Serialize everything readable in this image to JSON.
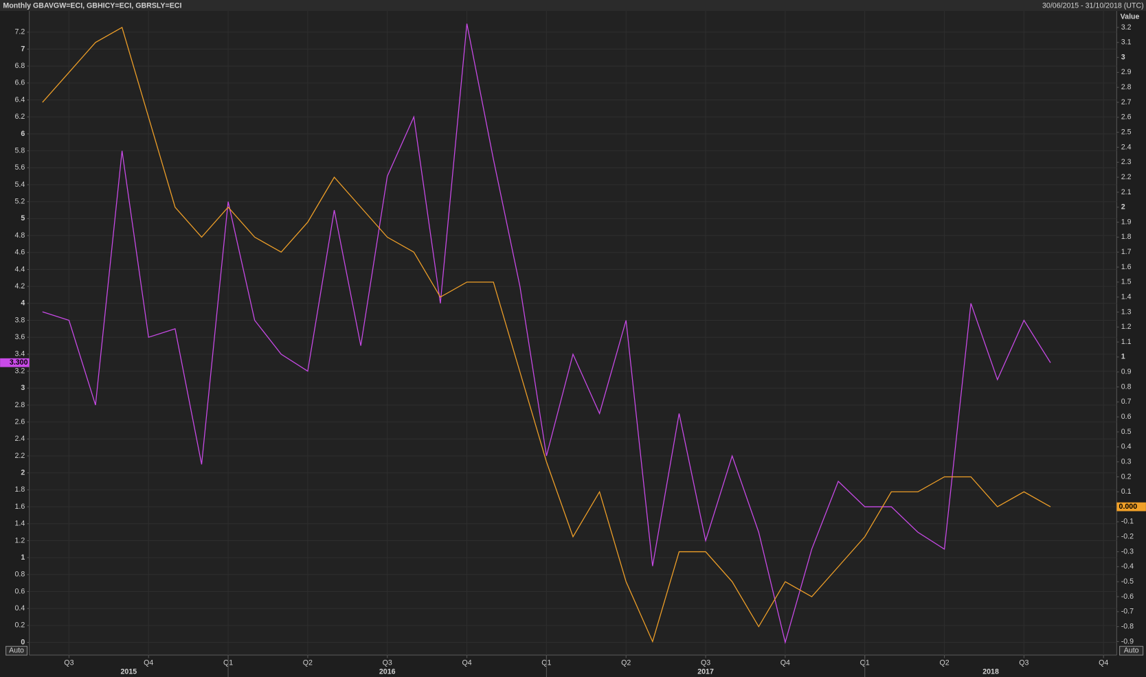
{
  "chart_data": {
    "type": "line",
    "title": "Monthly GBAVGW=ECI, GBHICY=ECI, GBRSLY=ECI",
    "date_range": "30/06/2015 - 31/10/2018 (UTC)",
    "y2_label": "Value",
    "left_scale_mode": "Auto",
    "right_scale_mode": "Auto",
    "categories": [
      null,
      "Q3",
      null,
      null,
      "Q4",
      null,
      null,
      "Q1",
      null,
      null,
      "Q2",
      null,
      null,
      "Q3",
      null,
      null,
      "Q4",
      null,
      null,
      "Q1",
      null,
      null,
      "Q2",
      null,
      null,
      "Q3",
      null,
      null,
      "Q4",
      null,
      null,
      "Q1",
      null,
      null,
      "Q2",
      null,
      null,
      "Q3",
      null,
      null,
      "Q4"
    ],
    "category_groups": [
      "2015",
      "2015",
      "2015",
      "2015",
      "2015",
      "2015",
      "2015",
      "2016",
      "2016",
      "2016",
      "2016",
      "2016",
      "2016",
      "2016",
      "2016",
      "2016",
      "2016",
      "2016",
      "2016",
      "2017",
      "2017",
      "2017",
      "2017",
      "2017",
      "2017",
      "2017",
      "2017",
      "2017",
      "2017",
      "2017",
      "2017",
      "2018",
      "2018",
      "2018",
      "2018",
      "2018",
      "2018",
      "2018",
      "2018",
      "2018",
      "2018"
    ],
    "series": [
      {
        "color": "#c94ae8",
        "axis": "y",
        "last_label": "3.300",
        "values": [
          3.9,
          3.8,
          2.8,
          5.8,
          3.6,
          3.7,
          2.1,
          5.2,
          3.8,
          3.4,
          3.2,
          5.1,
          3.5,
          5.5,
          6.2,
          4.0,
          7.3,
          5.7,
          4.2,
          2.2,
          3.4,
          2.7,
          3.8,
          0.9,
          2.7,
          1.2,
          2.2,
          1.3,
          0.0,
          1.1,
          1.9,
          1.6,
          1.6,
          1.3,
          1.1,
          4.0,
          3.1,
          3.8,
          3.3,
          null,
          null
        ]
      },
      {
        "color": "#f0a028",
        "axis": "y2",
        "last_label": "0.000",
        "values": [
          2.7,
          2.9,
          3.1,
          3.2,
          2.6,
          2.0,
          1.8,
          2.0,
          1.8,
          1.7,
          1.9,
          2.2,
          2.0,
          1.8,
          1.7,
          1.4,
          1.5,
          1.5,
          0.9,
          0.3,
          -0.2,
          0.1,
          -0.5,
          -0.9,
          -0.3,
          -0.3,
          -0.5,
          -0.8,
          -0.5,
          -0.6,
          -0.4,
          -0.2,
          0.1,
          0.1,
          0.2,
          0.2,
          0.0,
          0.1,
          0.0,
          null,
          null
        ]
      }
    ],
    "ylim": [
      -0.15,
      7.45
    ],
    "yticks": [
      0,
      0.2,
      0.4,
      0.6,
      0.8,
      1,
      1.2,
      1.4,
      1.6,
      1.8,
      2,
      2.2,
      2.4,
      2.6,
      2.8,
      3,
      3.2,
      3.4,
      3.6,
      3.8,
      4,
      4.2,
      4.4,
      4.6,
      4.8,
      5,
      5.2,
      5.4,
      5.6,
      5.8,
      6,
      6.2,
      6.4,
      6.6,
      6.8,
      7,
      7.2
    ],
    "y2lim": [
      -0.99,
      3.31
    ],
    "y2ticks": [
      -0.9,
      -0.8,
      -0.7,
      -0.6,
      -0.5,
      -0.4,
      -0.3,
      -0.2,
      -0.1,
      0,
      0.1,
      0.2,
      0.3,
      0.4,
      0.5,
      0.6,
      0.7,
      0.8,
      0.9,
      1,
      1.1,
      1.2,
      1.3,
      1.4,
      1.5,
      1.6,
      1.7,
      1.8,
      1.9,
      2,
      2.1,
      2.2,
      2.3,
      2.4,
      2.5,
      2.6,
      2.7,
      2.8,
      2.9,
      3,
      3.1,
      3.2
    ],
    "grid": true
  }
}
